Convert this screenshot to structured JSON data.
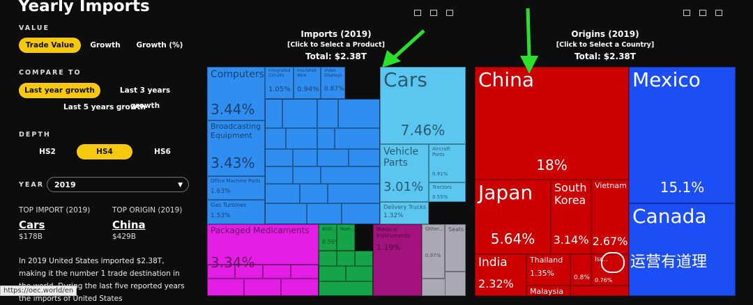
{
  "sidebar": {
    "title": "Yearly Imports",
    "value_label": "VALUE",
    "value_options": [
      "Trade Value",
      "Growth",
      "Growth (%)"
    ],
    "compare_label": "COMPARE TO",
    "compare_options": [
      "Last year growth",
      "Last 3 years growth",
      "Last 5 years growth"
    ],
    "depth_label": "DEPTH",
    "depth_options": [
      "HS2",
      "HS4",
      "HS6"
    ],
    "year_label": "YEAR",
    "year": "2019",
    "top_import_label": "TOP IMPORT (2019)",
    "top_import": "Cars",
    "top_import_value": "$178B",
    "top_origin_label": "TOP ORIGIN (2019)",
    "top_origin": "China",
    "top_origin_value": "$429B",
    "description": "In 2019 United States imported $2.38T, making it the number 1 trade destination in the world. During the last five reported years the imports of United States"
  },
  "status_url": "https://oec.world/en",
  "imports": {
    "title": "Imports (2019)",
    "hint": "[Click to Select a Product]",
    "total": "Total: $2.38T",
    "tiles": [
      {
        "label": "Computers",
        "share": "3.44%",
        "color": "#2f8ef0"
      },
      {
        "label": "Broadcasting Equipment",
        "share": "3.43%",
        "color": "#2f8ef0"
      },
      {
        "label": "Office Machine Parts",
        "share": "1.63%",
        "color": "#2f8ef0"
      },
      {
        "label": "Gas Turbines",
        "share": "1.53%",
        "color": "#2f8ef0"
      },
      {
        "label": "Integrated Circuits",
        "share": "1.05%",
        "color": "#2f8ef0"
      },
      {
        "label": "Insulated Wire",
        "share": "0.94%",
        "color": "#2f8ef0"
      },
      {
        "label": "Video Displays",
        "share": "0.87%",
        "color": "#2f8ef0"
      },
      {
        "label": "Cars",
        "share": "7.46%",
        "color": "#5bc6f0"
      },
      {
        "label": "Vehicle Parts",
        "share": "3.01%",
        "color": "#5bc6f0"
      },
      {
        "label": "Aircraft Parts",
        "share": "0.91%",
        "color": "#5bc6f0"
      },
      {
        "label": "Tractors",
        "share": "0.55%",
        "color": "#5bc6f0"
      },
      {
        "label": "Delivery Trucks",
        "share": "1.32%",
        "color": "#5bc6f0"
      },
      {
        "label": "Packaged Medicaments",
        "share": "3.34%",
        "color": "#e41ee4"
      },
      {
        "label": "Knit...",
        "share": "0.59%",
        "color": "#16a449"
      },
      {
        "label": "Non-...",
        "color": "#16a449"
      },
      {
        "label": "Medical Instruments",
        "share": "1.19%",
        "color": "#a3137d"
      },
      {
        "label": "Other...",
        "share": "0.97%",
        "color": "#a9a9b6"
      },
      {
        "label": "Seats",
        "color": "#a9a9b6"
      }
    ]
  },
  "origins": {
    "title": "Origins (2019)",
    "hint": "[Click to Select a Country]",
    "total": "Total: $2.38T",
    "tiles": [
      {
        "label": "China",
        "share": "18%",
        "color": "#cc0000"
      },
      {
        "label": "Japan",
        "share": "5.64%",
        "color": "#cc0000"
      },
      {
        "label": "South Korea",
        "share": "3.14%",
        "color": "#cc0000"
      },
      {
        "label": "Vietnam",
        "share": "2.67%",
        "color": "#cc0000"
      },
      {
        "label": "India",
        "share": "2.32%",
        "color": "#cc0000"
      },
      {
        "label": "Thailand",
        "share": "1.35%",
        "color": "#cc0000"
      },
      {
        "label": "Malaysia",
        "color": "#cc0000"
      },
      {
        "share": "0.8%",
        "color": "#cc0000"
      },
      {
        "label": "Isr...",
        "share": "0.76%",
        "color": "#cc0000"
      },
      {
        "label": "Mexico",
        "share": "15.1%",
        "color": "#1b4ef5"
      },
      {
        "label": "Canada",
        "color": "#1b4ef5"
      }
    ]
  },
  "watermark": "运营有道理"
}
